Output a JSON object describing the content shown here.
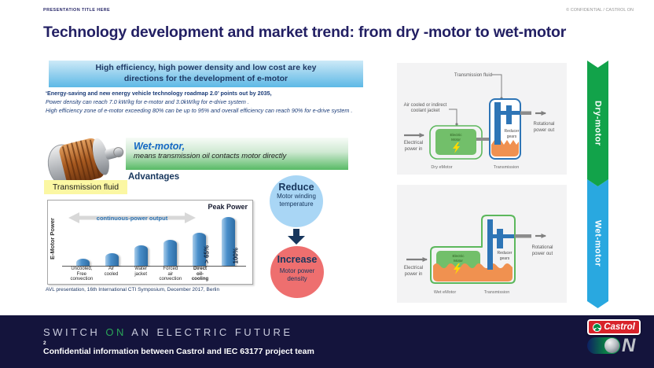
{
  "header": {
    "presentation_title": "PRESENTATION TITLE HERE",
    "confidential_mark": "© CONFIDENTIAL / CASTROL ON",
    "slide_title": "Technology development and market trend: from dry -motor to wet-motor"
  },
  "key_message": {
    "line1": "High efficiency, high power density and low cost are key",
    "line2": "directions for the development of e-motor"
  },
  "roadmap": {
    "headline": "‘Energy-saving and new energy vehicle technology roadmap 2.0’ points out by 2035,",
    "point1": "Power density can reach 7.0 kW/kg for e-motor and 3.0kW/kg for e-drive system .",
    "point2": "High efficiency zone of e-motor exceeding 80% can be up to 95% and overall efficiency can reach 90% for e-drive system ."
  },
  "wet_motor_intro": {
    "photo_label": "Transmission fluid",
    "title": "Wet-motor,",
    "subtitle": "means transmission oil contacts motor directly",
    "advantages_heading": "Advantages"
  },
  "chart_data": {
    "type": "bar",
    "title": "",
    "ylabel": "E-Motor Power",
    "xlabel": "",
    "arrow_label": "continuous-power output",
    "peak_label": "Peak Power",
    "categories": [
      "Uncooled,\nFree\nconvection",
      "Air\ncooled",
      "Water\njacket",
      "Forced\nair\nconvection",
      "Direct\noil-\ncooling",
      ""
    ],
    "values": [
      15,
      26,
      42,
      53,
      68,
      100
    ],
    "unit": "% of peak power",
    "bar_annotations": [
      "",
      "",
      "",
      "",
      "> 65%",
      "100%"
    ],
    "emphasized_categories": [
      4
    ],
    "ylim": [
      0,
      100
    ],
    "grid": false,
    "caption": "AVL presentation, 16th International CTI Symposium, December 2017, Berlin"
  },
  "benefits": {
    "reduce_title": "Reduce",
    "reduce_text": "Motor winding temperature",
    "increase_title": "Increase",
    "increase_text": "Motor power density"
  },
  "dry_diagram": {
    "fluid_label": "Transmission fluid",
    "coolant_lines": [
      "Air cooled or indirect",
      "coolant jacket"
    ],
    "power_in_lines": [
      "Electrical",
      "power in"
    ],
    "power_out_lines": [
      "Rotational",
      "power out"
    ],
    "motor_lines": [
      "Electric",
      "Motor"
    ],
    "gears_lines": [
      "Reducer",
      "gears"
    ],
    "caption_motor": "Dry eMotor",
    "caption_trans": "Transmission"
  },
  "wet_diagram": {
    "power_in_lines": [
      "Electrical",
      "power in"
    ],
    "power_out_lines": [
      "Rotational",
      "power out"
    ],
    "motor_lines": [
      "Electric",
      "Motor"
    ],
    "gears_lines": [
      "Reducer",
      "gears"
    ],
    "caption_motor": "Wet eMotor",
    "caption_trans": "Transmission"
  },
  "side_labels": {
    "dry": "Dry-motor",
    "wet": "Wet-motor"
  },
  "footer": {
    "tagline_pre": "SWITCH ",
    "tagline_on": "ON",
    "tagline_post": " AN ELECTRIC FUTURE",
    "page_number": "2",
    "confidential_note": "Confidential information between Castrol and IEC 63177 project team",
    "logo_castrol_text": "Castrol",
    "logo_on_text": "N"
  },
  "colors": {
    "title_navy": "#221f63",
    "body_navy": "#1f3864",
    "key_box_blue": "#5db9e6",
    "wet_box_green": "#57ba65",
    "bar_blue": "#4a8fcb",
    "reduce_circle_blue": "#a9d6f5",
    "increase_circle_red": "#ee6f6f",
    "dry_arrow_green": "#12a34a",
    "wet_arrow_blue": "#29a8e0",
    "footer_navy": "#14143c",
    "castrol_red": "#d8232a",
    "fluid_orange": "#f09150"
  }
}
